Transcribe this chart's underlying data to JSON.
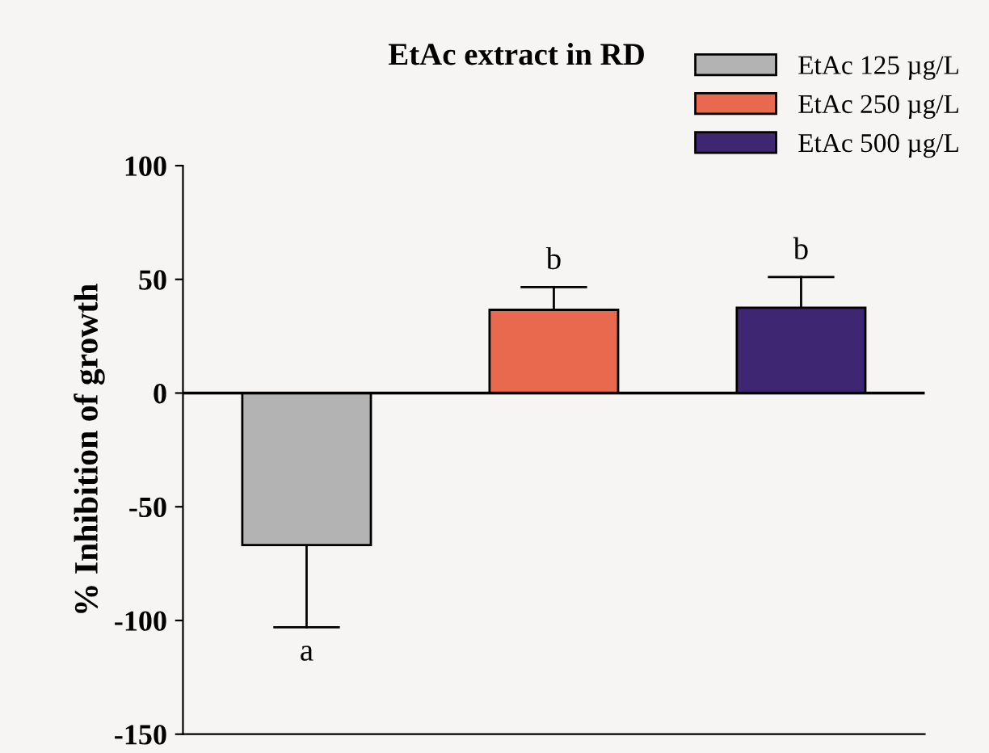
{
  "chart_data": {
    "type": "bar",
    "title": "EtAc extract in RD",
    "ylabel": "% Inhibition of growth",
    "categories": [
      null,
      null,
      null
    ],
    "series": [
      {
        "name": "EtAc 125 µg/L",
        "color": "#b3b3b3",
        "values": [
          -66.8,
          null,
          null
        ],
        "errors": [
          [
            -103,
            -66.8
          ],
          null,
          null
        ]
      },
      {
        "name": "EtAc 250 µg/L",
        "color": "#e8694e",
        "values": [
          null,
          36.6,
          null
        ],
        "errors": [
          null,
          [
            36.6,
            46.6
          ],
          null
        ]
      },
      {
        "name": "EtAc 500 µg/L",
        "color": "#3f2672",
        "values": [
          null,
          null,
          37.5
        ],
        "errors": [
          null,
          null,
          [
            37.5,
            51
          ]
        ]
      }
    ],
    "annotations": [
      "a",
      "b",
      "b"
    ],
    "ylim": [
      -150,
      100
    ],
    "yticks": [
      -150,
      -100,
      -50,
      0,
      50,
      100
    ],
    "legend": "top right"
  }
}
